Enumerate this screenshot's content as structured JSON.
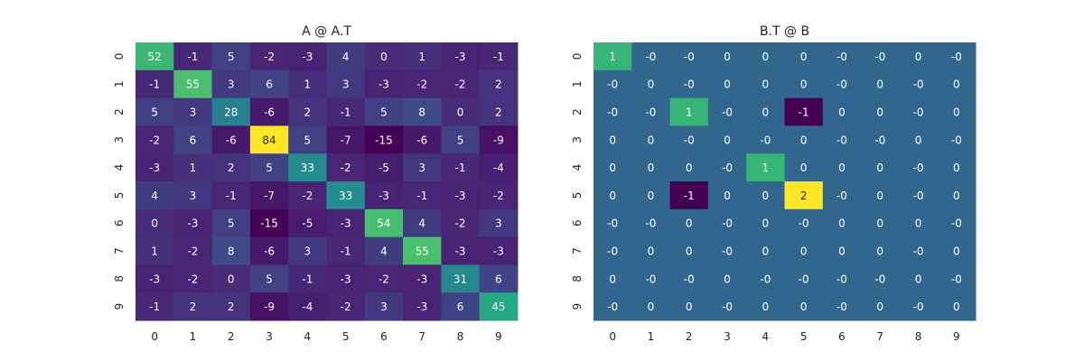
{
  "chart_data": [
    {
      "type": "heatmap",
      "title": "A @ A.T",
      "x": [
        "0",
        "1",
        "2",
        "3",
        "4",
        "5",
        "6",
        "7",
        "8",
        "9"
      ],
      "y": [
        "0",
        "1",
        "2",
        "3",
        "4",
        "5",
        "6",
        "7",
        "8",
        "9"
      ],
      "values": [
        [
          52,
          -1,
          5,
          -2,
          -3,
          4,
          0,
          1,
          -3,
          -1
        ],
        [
          -1,
          55,
          3,
          6,
          1,
          3,
          -3,
          -2,
          -2,
          2
        ],
        [
          5,
          3,
          28,
          -6,
          2,
          -1,
          5,
          8,
          0,
          2
        ],
        [
          -2,
          6,
          -6,
          84,
          5,
          -7,
          -15,
          -6,
          5,
          -9
        ],
        [
          -3,
          1,
          2,
          5,
          33,
          -2,
          -5,
          3,
          -1,
          -4
        ],
        [
          4,
          3,
          -1,
          -7,
          -2,
          33,
          -3,
          -1,
          -3,
          -2
        ],
        [
          0,
          -3,
          5,
          -15,
          -5,
          -3,
          54,
          4,
          -2,
          3
        ],
        [
          1,
          -2,
          8,
          -6,
          3,
          -1,
          4,
          55,
          -3,
          -3
        ],
        [
          -3,
          -2,
          0,
          5,
          -1,
          -3,
          -2,
          -3,
          31,
          6
        ],
        [
          -1,
          2,
          2,
          -9,
          -4,
          -2,
          3,
          -3,
          6,
          45
        ]
      ],
      "colormap": "viridis",
      "vmin": -15,
      "vmax": 84,
      "colorbar": false
    },
    {
      "type": "heatmap",
      "title": "B.T @ B",
      "x": [
        "0",
        "1",
        "2",
        "3",
        "4",
        "5",
        "6",
        "7",
        "8",
        "9"
      ],
      "y": [
        "0",
        "1",
        "2",
        "3",
        "4",
        "5",
        "6",
        "7",
        "8",
        "9"
      ],
      "values": [
        [
          1,
          0,
          0,
          0,
          0,
          0,
          0,
          0,
          0,
          0
        ],
        [
          0,
          0,
          0,
          0,
          0,
          0,
          0,
          0,
          0,
          0
        ],
        [
          0,
          0,
          1,
          0,
          0,
          -1,
          0,
          0,
          0,
          0
        ],
        [
          0,
          0,
          0,
          0,
          0,
          0,
          0,
          0,
          0,
          0
        ],
        [
          0,
          0,
          0,
          0,
          1,
          0,
          0,
          0,
          0,
          0
        ],
        [
          0,
          0,
          -1,
          0,
          0,
          2,
          0,
          0,
          0,
          0
        ],
        [
          0,
          0,
          0,
          0,
          0,
          0,
          0,
          0,
          0,
          0
        ],
        [
          0,
          0,
          0,
          0,
          0,
          0,
          0,
          0,
          0,
          0
        ],
        [
          0,
          0,
          0,
          0,
          0,
          0,
          0,
          0,
          0,
          0
        ],
        [
          0,
          0,
          0,
          0,
          0,
          0,
          0,
          0,
          0,
          0
        ]
      ],
      "labels": [
        [
          "1",
          "-0",
          "-0",
          "0",
          "0",
          "0",
          "-0",
          "-0",
          "0",
          "-0"
        ],
        [
          "-0",
          "0",
          "-0",
          "0",
          "0",
          "0",
          "-0",
          "0",
          "-0",
          "0"
        ],
        [
          "-0",
          "-0",
          "1",
          "-0",
          "0",
          "-1",
          "0",
          "0",
          "-0",
          "0"
        ],
        [
          "0",
          "0",
          "-0",
          "0",
          "-0",
          "0",
          "-0",
          "-0",
          "0",
          "-0"
        ],
        [
          "0",
          "0",
          "0",
          "-0",
          "1",
          "0",
          "0",
          "0",
          "-0",
          "0"
        ],
        [
          "0",
          "0",
          "-1",
          "0",
          "0",
          "2",
          "-0",
          "0",
          "-0",
          "0"
        ],
        [
          "-0",
          "-0",
          "0",
          "-0",
          "0",
          "-0",
          "0",
          "0",
          "0",
          "-0"
        ],
        [
          "-0",
          "0",
          "0",
          "-0",
          "0",
          "0",
          "0",
          "0",
          "-0",
          "0"
        ],
        [
          "0",
          "-0",
          "-0",
          "0",
          "-0",
          "-0",
          "-0",
          "-0",
          "0",
          "-0"
        ],
        [
          "-0",
          "0",
          "0",
          "-0",
          "0",
          "0",
          "-0",
          "0",
          "-0",
          "0"
        ]
      ],
      "colormap": "viridis",
      "vmin": -1,
      "vmax": 2,
      "colorbar": false
    }
  ]
}
